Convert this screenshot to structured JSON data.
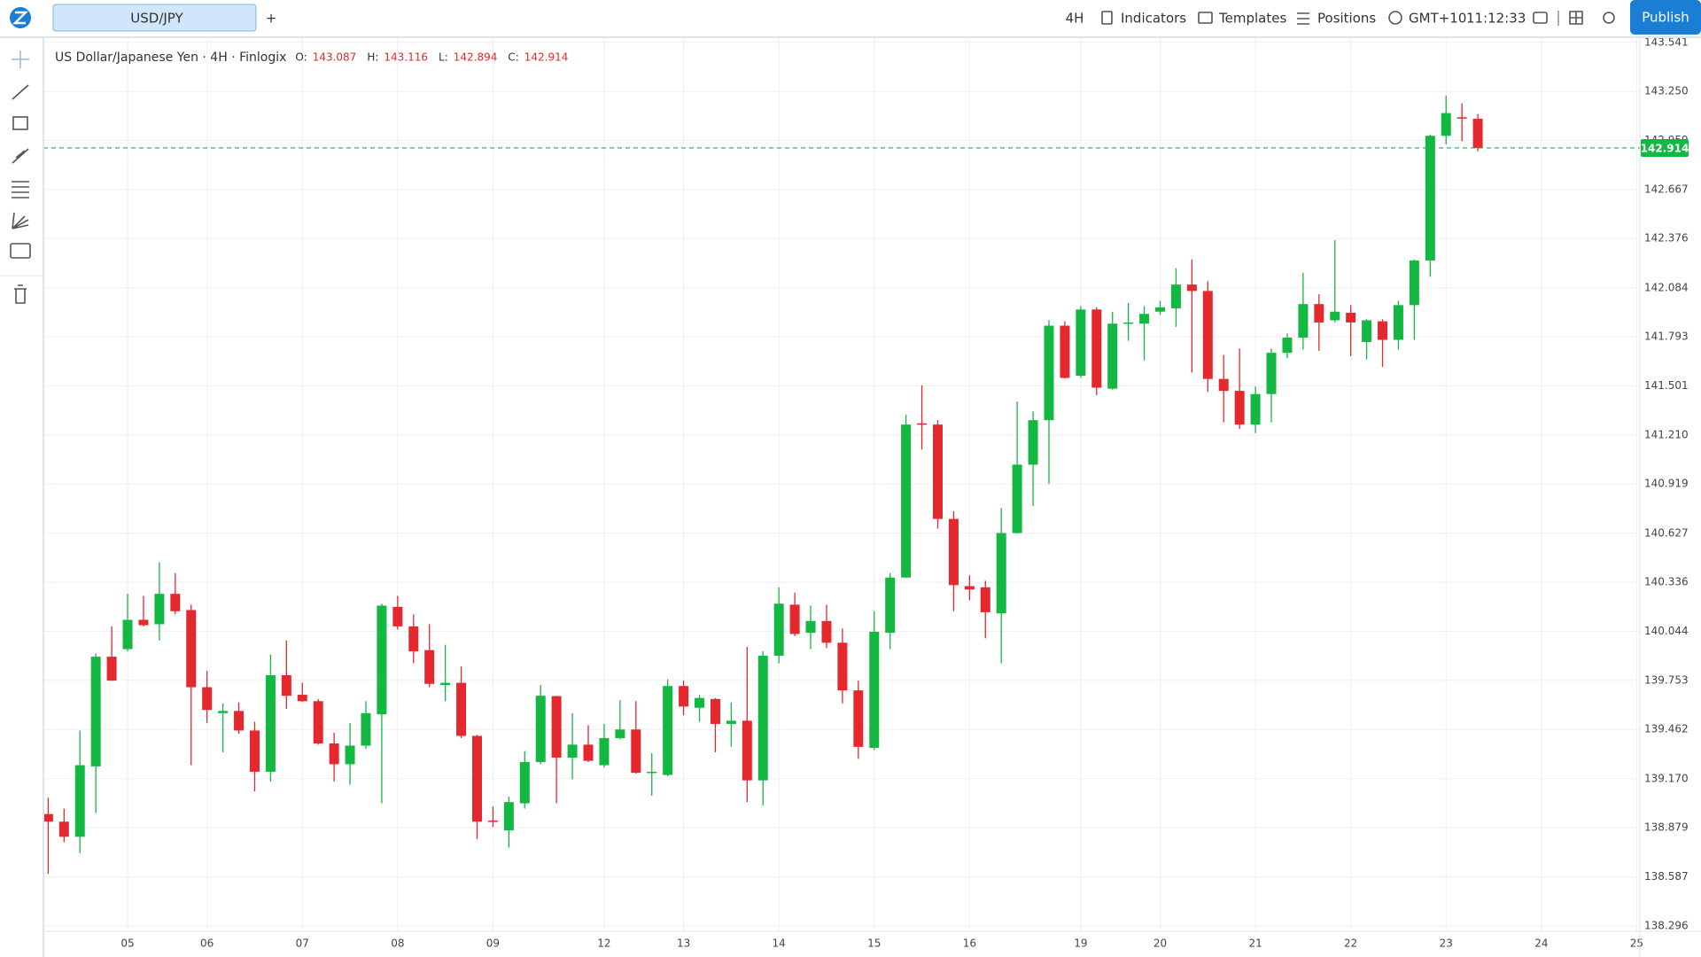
{
  "toolbar": {
    "symbol": "USD/JPY",
    "add": "+",
    "interval": "4H",
    "indicators": "Indicators",
    "templates": "Templates",
    "positions": "Positions",
    "timezone": "GMT+10",
    "clock": "11:12:33",
    "publish": "Publish"
  },
  "chart_data": {
    "type": "candlestick",
    "title": "US Dollar/Japanese Yen · 4H · Finlogix",
    "ohlc_labels": [
      "O:",
      "H:",
      "L:",
      "C:"
    ],
    "up_color": "#13b842",
    "down_color": "#e5282e",
    "grid": true,
    "x": [
      0,
      1,
      2,
      3,
      4,
      5,
      6,
      7,
      8,
      9,
      10,
      11,
      12,
      13,
      14,
      15,
      16,
      17,
      18,
      19,
      20,
      21,
      22,
      23,
      24,
      25,
      26,
      27,
      28,
      29,
      30,
      31,
      32,
      33,
      34,
      35,
      36,
      37,
      38,
      39,
      40,
      41,
      42,
      43,
      44,
      45,
      46,
      47,
      48,
      49,
      50,
      51,
      52,
      53,
      54,
      55,
      56,
      57,
      58,
      59,
      60,
      61,
      62,
      63,
      64,
      65,
      66,
      67,
      68,
      69,
      70,
      71,
      72,
      73,
      74,
      75,
      76,
      77,
      78,
      79,
      80,
      81,
      82,
      83,
      84,
      85,
      86,
      87,
      88,
      89,
      90
    ],
    "open": [
      138.96,
      138.915,
      138.825,
      139.243,
      139.894,
      139.939,
      140.113,
      140.087,
      140.267,
      140.171,
      139.713,
      139.559,
      139.572,
      139.456,
      139.211,
      139.784,
      139.668,
      139.63,
      139.379,
      139.256,
      139.366,
      139.552,
      140.19,
      140.074,
      139.933,
      139.726,
      139.739,
      139.424,
      138.921,
      138.863,
      139.024,
      139.269,
      139.66,
      139.295,
      139.372,
      139.25,
      139.411,
      139.462,
      139.205,
      139.192,
      139.72,
      139.591,
      139.643,
      139.495,
      139.514,
      139.16,
      139.9,
      140.203,
      140.036,
      140.106,
      139.977,
      139.694,
      139.353,
      140.036,
      140.364,
      141.279,
      141.272,
      140.712,
      140.313,
      140.306,
      140.151,
      140.628,
      141.034,
      141.298,
      141.859,
      141.562,
      141.955,
      141.485,
      141.871,
      141.871,
      141.942,
      141.962,
      142.103,
      142.065,
      141.543,
      141.472,
      141.272,
      141.453,
      141.698,
      141.788,
      141.987,
      141.891,
      141.936,
      141.762,
      141.885,
      141.775,
      141.981,
      142.246,
      142.986,
      143.096,
      143.087
    ],
    "high": [
      139.057,
      138.992,
      139.456,
      139.913,
      140.074,
      140.267,
      140.255,
      140.454,
      140.39,
      140.203,
      139.81,
      139.617,
      139.623,
      139.508,
      139.907,
      139.99,
      139.739,
      139.643,
      139.443,
      139.501,
      139.63,
      140.209,
      140.255,
      140.145,
      140.087,
      139.965,
      139.836,
      139.43,
      139.005,
      139.063,
      139.334,
      139.726,
      139.662,
      139.559,
      139.488,
      139.495,
      139.636,
      139.63,
      139.321,
      139.759,
      139.752,
      139.668,
      139.649,
      139.623,
      139.952,
      139.926,
      140.306,
      140.274,
      140.197,
      140.203,
      140.061,
      139.752,
      140.164,
      140.39,
      141.33,
      141.505,
      141.298,
      140.757,
      140.377,
      140.345,
      140.776,
      141.408,
      141.35,
      141.891,
      141.885,
      141.975,
      141.968,
      141.942,
      141.994,
      141.975,
      142.007,
      142.2,
      142.252,
      142.123,
      141.685,
      141.723,
      141.498,
      141.723,
      141.813,
      142.174,
      142.045,
      142.367,
      141.981,
      141.897,
      141.897,
      142.007,
      142.252,
      142.992,
      143.224,
      143.179,
      143.116
    ],
    "low": [
      138.605,
      138.793,
      138.728,
      138.966,
      139.75,
      139.926,
      140.074,
      139.99,
      140.145,
      139.25,
      139.501,
      139.327,
      139.437,
      139.095,
      139.153,
      139.585,
      139.625,
      139.372,
      139.153,
      139.134,
      139.347,
      139.024,
      140.055,
      139.855,
      139.713,
      139.63,
      139.411,
      138.812,
      138.883,
      138.761,
      138.992,
      139.256,
      139.024,
      139.166,
      139.269,
      139.237,
      139.404,
      139.2,
      139.069,
      139.185,
      139.546,
      139.508,
      139.327,
      139.36,
      139.031,
      139.011,
      139.855,
      140.016,
      139.939,
      139.945,
      139.617,
      139.288,
      139.34,
      139.939,
      140.36,
      141.124,
      140.654,
      140.164,
      140.229,
      140.003,
      139.855,
      140.625,
      140.789,
      140.918,
      141.545,
      141.549,
      141.446,
      141.479,
      141.769,
      141.653,
      141.923,
      141.852,
      141.581,
      141.466,
      141.285,
      141.247,
      141.221,
      141.285,
      141.665,
      141.717,
      141.71,
      141.878,
      141.678,
      141.659,
      141.614,
      141.717,
      141.775,
      142.149,
      142.935,
      142.954,
      142.894
    ],
    "close": [
      138.915,
      138.825,
      139.25,
      139.894,
      139.752,
      140.113,
      140.081,
      140.267,
      140.164,
      139.713,
      139.578,
      139.572,
      139.456,
      139.211,
      139.784,
      139.662,
      139.63,
      139.379,
      139.256,
      139.366,
      139.559,
      140.197,
      140.074,
      139.926,
      139.733,
      139.739,
      139.424,
      138.915,
      138.915,
      139.031,
      139.269,
      139.662,
      139.295,
      139.372,
      139.276,
      139.411,
      139.462,
      139.205,
      139.211,
      139.72,
      139.598,
      139.649,
      139.495,
      139.514,
      139.16,
      139.9,
      140.209,
      140.029,
      140.106,
      139.977,
      139.694,
      139.359,
      140.042,
      140.364,
      141.272,
      141.272,
      140.712,
      140.319,
      140.293,
      140.158,
      140.628,
      141.034,
      141.298,
      141.859,
      141.549,
      141.955,
      141.491,
      141.871,
      141.878,
      141.929,
      141.968,
      142.103,
      142.065,
      141.543,
      141.472,
      141.272,
      141.453,
      141.698,
      141.788,
      141.987,
      141.878,
      141.942,
      141.878,
      141.891,
      141.775,
      141.981,
      142.246,
      142.986,
      143.121,
      143.09,
      142.914
    ],
    "xlim": [
      -0.3,
      100.2
    ],
    "xticks": [
      {
        "value": 5,
        "label": "05"
      },
      {
        "value": 10,
        "label": "06"
      },
      {
        "value": 16,
        "label": "07"
      },
      {
        "value": 22,
        "label": "08"
      },
      {
        "value": 28,
        "label": "09"
      },
      {
        "value": 35,
        "label": "12"
      },
      {
        "value": 40,
        "label": "13"
      },
      {
        "value": 46,
        "label": "14"
      },
      {
        "value": 52,
        "label": "15"
      },
      {
        "value": 58,
        "label": "16"
      },
      {
        "value": 65,
        "label": "19"
      },
      {
        "value": 70,
        "label": "20"
      },
      {
        "value": 76,
        "label": "21"
      },
      {
        "value": 82,
        "label": "22"
      },
      {
        "value": 88,
        "label": "23"
      },
      {
        "value": 94,
        "label": "24"
      },
      {
        "value": 100,
        "label": "25"
      }
    ],
    "ylim": [
      138.264,
      143.566
    ],
    "yticks": [
      138.296,
      138.587,
      138.879,
      {
        "value": 139.17,
        "label": "139.170"
      },
      139.462,
      139.753,
      140.044,
      140.336,
      140.627,
      140.919,
      {
        "value": 141.21,
        "label": "141.210"
      },
      141.501,
      141.793,
      142.084,
      142.376,
      142.667,
      142.959,
      {
        "value": 143.25,
        "label": "143.250"
      },
      143.541
    ]
  }
}
